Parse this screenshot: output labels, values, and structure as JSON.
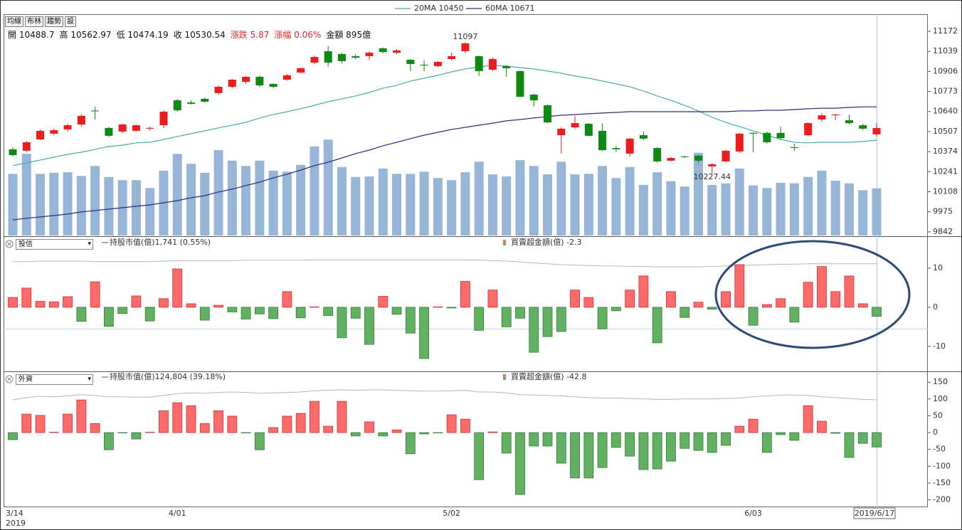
{
  "toolbar": [
    "均線",
    "布林",
    "趨勢",
    "設"
  ],
  "chart_data": [
    {
      "type": "candlestick",
      "info": [
        {
          "label": "開",
          "value": "10488.7"
        },
        {
          "label": "高",
          "value": "10562.97"
        },
        {
          "label": "低",
          "value": "10474.19"
        },
        {
          "label": "收",
          "value": "10530.54"
        },
        {
          "label": "漲跌",
          "value": "5.87",
          "color": "#e8262a"
        },
        {
          "label": "漲幅",
          "value": "0.06%",
          "color": "#e8262a"
        },
        {
          "label": "金額",
          "value": "895億"
        }
      ],
      "categories": [
        "3/14",
        null,
        null,
        null,
        null,
        null,
        null,
        null,
        null,
        null,
        null,
        null,
        "4/01",
        null,
        null,
        null,
        null,
        null,
        null,
        null,
        null,
        null,
        null,
        null,
        null,
        null,
        null,
        null,
        null,
        null,
        null,
        null,
        "5/02",
        null,
        null,
        null,
        null,
        null,
        null,
        null,
        null,
        null,
        null,
        null,
        null,
        null,
        null,
        null,
        null,
        null,
        null,
        null,
        null,
        null,
        "6/03",
        null,
        null,
        null,
        null,
        null,
        null,
        null,
        null,
        "2019/6/17"
      ],
      "x_year": "2019",
      "open": [
        10389,
        10380,
        10455,
        10493,
        10521,
        10554,
        10646,
        10531,
        10507,
        10512,
        10526,
        10549,
        10714,
        10700,
        10724,
        10762,
        10804,
        10837,
        10870,
        10823,
        10851,
        10898,
        10964,
        11040,
        11021,
        11007,
        11007,
        11059,
        11030,
        10983,
        10950,
        10941,
        10988,
        11040,
        11007,
        10917,
        10941,
        10908,
        10752,
        10681,
        10483,
        10535,
        10559,
        10512,
        10398,
        10361,
        10483,
        10398,
        10314,
        10342,
        10347,
        10276,
        10309,
        10375,
        10498,
        10498,
        10498,
        10403,
        10483,
        10587,
        10615,
        10582,
        10549,
        10488.7
      ],
      "high": [
        10403,
        10445,
        10521,
        10526,
        10559,
        10620,
        10672,
        10540,
        10559,
        10554,
        10540,
        10648,
        10724,
        10714,
        10733,
        10813,
        10856,
        10875,
        10880,
        10827,
        10889,
        10931,
        11011,
        11073,
        11030,
        11021,
        11040,
        11064,
        11054,
        10988,
        10979,
        10974,
        11030,
        11097,
        11011,
        10997,
        10946,
        10913,
        10757,
        10686,
        10535,
        10611,
        10564,
        10563,
        10412,
        10464,
        10507,
        10403,
        10337,
        10347,
        10351,
        10300,
        10384,
        10498,
        10502,
        10507,
        10540,
        10426,
        10568,
        10630,
        10625,
        10620,
        10559,
        10562.97
      ],
      "low": [
        10342,
        10370,
        10450,
        10484,
        10507,
        10540,
        10587,
        10470,
        10498,
        10507,
        10512,
        10530,
        10639,
        10686,
        10700,
        10752,
        10794,
        10823,
        10804,
        10794,
        10846,
        10893,
        10955,
        10936,
        10960,
        10988,
        10983,
        11026,
        11021,
        10908,
        10908,
        10936,
        10979,
        11026,
        10875,
        10908,
        10870,
        10733,
        10672,
        10563,
        10361,
        10526,
        10474,
        10380,
        10370,
        10342,
        10450,
        10300,
        10309,
        10332,
        10300,
        10227.44,
        10304,
        10365,
        10370,
        10427,
        10455,
        10380,
        10474,
        10573,
        10582,
        10554,
        10516,
        10474.19
      ],
      "close": [
        10351,
        10436,
        10512,
        10516,
        10549,
        10611,
        10642,
        10479,
        10554,
        10549,
        10531,
        10639,
        10648,
        10691,
        10705,
        10804,
        10851,
        10870,
        10813,
        10804,
        10880,
        10927,
        11002,
        10964,
        10974,
        10997,
        11030,
        11035,
        11045,
        10955,
        10946,
        10969,
        11007,
        11092,
        10908,
        10988,
        10927,
        10738,
        10714,
        10568,
        10526,
        10563,
        10479,
        10384,
        10390,
        10460,
        10460,
        10309,
        10332,
        10337,
        10314,
        10290,
        10380,
        10493,
        10493,
        10436,
        10464,
        10401,
        10563,
        10615,
        10620,
        10563,
        10526,
        10530.54
      ],
      "high_labels": [
        null,
        null,
        null,
        null,
        null,
        null,
        null,
        null,
        null,
        null,
        null,
        null,
        null,
        null,
        null,
        null,
        null,
        null,
        null,
        null,
        null,
        null,
        null,
        null,
        null,
        null,
        null,
        null,
        null,
        null,
        null,
        null,
        null,
        "11097",
        null,
        null,
        null,
        null,
        null,
        null,
        null,
        null,
        null,
        null,
        null,
        null,
        null,
        null,
        null,
        null,
        null,
        null,
        null,
        null,
        null,
        null,
        null,
        null,
        null,
        null,
        null,
        null,
        null,
        null
      ],
      "low_labels": [
        null,
        null,
        null,
        null,
        null,
        null,
        null,
        null,
        null,
        null,
        null,
        null,
        null,
        null,
        null,
        null,
        null,
        null,
        null,
        null,
        null,
        null,
        null,
        null,
        null,
        null,
        null,
        null,
        null,
        null,
        null,
        null,
        null,
        null,
        null,
        null,
        null,
        null,
        null,
        null,
        null,
        null,
        null,
        null,
        null,
        null,
        null,
        null,
        null,
        null,
        null,
        "10227.44",
        null,
        null,
        null,
        null,
        null,
        null,
        null,
        null,
        null,
        null,
        null,
        null
      ],
      "up_color": "#ee1c1c",
      "down_color": "#0c8a12",
      "series": [
        {
          "name": "20MA 10450",
          "color": "#49aea8",
          "values": [
            10281,
            10299,
            10318,
            10337,
            10356,
            10370,
            10389,
            10408,
            10417,
            10432,
            10436,
            10455,
            10474,
            10493,
            10512,
            10531,
            10549,
            10568,
            10597,
            10620,
            10639,
            10658,
            10681,
            10705,
            10724,
            10743,
            10766,
            10795,
            10813,
            10842,
            10861,
            10880,
            10903,
            10922,
            10936,
            10946,
            10941,
            10931,
            10922,
            10908,
            10894,
            10875,
            10861,
            10842,
            10823,
            10804,
            10776,
            10743,
            10714,
            10681,
            10644,
            10601,
            10568,
            10540,
            10512,
            10483,
            10455,
            10436,
            10432,
            10436,
            10436,
            10436,
            10441,
            10450
          ]
        },
        {
          "name": "60MA 10671",
          "color": "#2b2d7c",
          "values": [
            9922,
            9932,
            9941,
            9950,
            9960,
            9974,
            9983,
            9993,
            10002,
            10012,
            10021,
            10035,
            10049,
            10068,
            10082,
            10106,
            10125,
            10149,
            10172,
            10200,
            10224,
            10252,
            10281,
            10304,
            10332,
            10361,
            10384,
            10413,
            10436,
            10460,
            10483,
            10502,
            10521,
            10535,
            10549,
            10563,
            10578,
            10587,
            10597,
            10606,
            10615,
            10620,
            10625,
            10630,
            10634,
            10639,
            10639,
            10639,
            10639,
            10639,
            10639,
            10639,
            10639,
            10644,
            10644,
            10648,
            10648,
            10653,
            10658,
            10662,
            10662,
            10667,
            10671,
            10671
          ]
        }
      ],
      "volume": {
        "color": "#97b5d6",
        "lim": [
          0,
          4200
        ],
        "values": [
          1170,
          1550,
          1170,
          1190,
          1200,
          1130,
          1320,
          1110,
          1050,
          1050,
          900,
          1230,
          1550,
          1360,
          1190,
          1620,
          1420,
          1320,
          1420,
          1230,
          1210,
          1340,
          1690,
          1820,
          1300,
          1110,
          1120,
          1270,
          1170,
          1170,
          1210,
          1090,
          1050,
          1200,
          1400,
          1160,
          1120,
          1430,
          1320,
          1160,
          1400,
          1160,
          1170,
          1320,
          1090,
          1300,
          960,
          1200,
          1030,
          930,
          1570,
          960,
          990,
          1270,
          950,
          900,
          1000,
          990,
          1110,
          1230,
          1040,
          990,
          860,
          895
        ]
      },
      "ylim": [
        9818,
        11285
      ],
      "yticks": [
        11172,
        11039,
        10906,
        10773,
        10640,
        10507,
        10374,
        10241,
        10108,
        9975,
        9842
      ]
    },
    {
      "type": "bar",
      "selector": "投信",
      "up_color": "#ff6b6b",
      "down_color": "#62b062",
      "series": [
        {
          "name": "持股市值(億)1,741 (0.55%)",
          "color": "#b4b4b4",
          "axis": "y2",
          "values": [
            1746,
            1746,
            1747,
            1747,
            1747,
            1747,
            1746,
            1746,
            1746,
            1746,
            1746,
            1747,
            1748,
            1748,
            1748,
            1748,
            1748,
            1749,
            1749,
            1749,
            1749,
            1749,
            1750,
            1750,
            1750,
            1750,
            1750,
            1750,
            1750,
            1750,
            1750,
            1750,
            1750,
            1750,
            1749,
            1748,
            1747,
            1745,
            1743,
            1741,
            1739,
            1738,
            1737,
            1736,
            1736,
            1735,
            1735,
            1734,
            1734,
            1734,
            1734,
            1735,
            1736,
            1737,
            1738,
            1739,
            1740,
            1740,
            1741,
            1741,
            1741,
            1741,
            1741,
            1741
          ]
        },
        {
          "name": "買賣超金額(億) -2.3",
          "values": [
            2.5,
            4.9,
            1.5,
            1.4,
            2.7,
            -3.6,
            6.5,
            -4.9,
            -1.6,
            2.9,
            -3.5,
            2.2,
            9.8,
            0.9,
            -3.3,
            0.5,
            -1.2,
            -3.0,
            -1.7,
            -2.9,
            4.0,
            -2.7,
            0.1,
            -2.1,
            -7.8,
            -2.8,
            -9.5,
            2.8,
            -1.8,
            -6.6,
            -13.1,
            0.1,
            -0.2,
            6.6,
            -5.9,
            4.4,
            -5.0,
            -2.8,
            -11.5,
            -7.5,
            -6.2,
            4.4,
            2.5,
            -5.5,
            -0.9,
            4.4,
            8.0,
            -9.1,
            4.0,
            -2.6,
            1.3,
            -0.5,
            4.0,
            10.9,
            -4.6,
            0.7,
            2.2,
            -3.8,
            6.4,
            10.4,
            4.0,
            8.0,
            0.9,
            -2.3
          ]
        }
      ],
      "ylim": [
        -16.2,
        17.8
      ],
      "yticks": [
        10,
        0,
        -10
      ],
      "y2lim": [
        1500,
        1800
      ]
    },
    {
      "type": "bar",
      "selector": "外資",
      "up_color": "#ff6b6b",
      "down_color": "#62b062",
      "series": [
        {
          "name": "持股市值(億)124,804 (39.18%)",
          "color": "#b4b4b4",
          "axis": "y2",
          "values": [
            124800,
            125300,
            125600,
            125500,
            125700,
            126000,
            125800,
            125500,
            125500,
            125400,
            125400,
            125800,
            126200,
            126400,
            126300,
            126500,
            126600,
            126500,
            126300,
            126400,
            126500,
            126600,
            126900,
            127000,
            127100,
            127000,
            127100,
            127100,
            127000,
            126900,
            126800,
            126800,
            126900,
            127000,
            126600,
            126600,
            126400,
            126000,
            125900,
            125800,
            125700,
            125500,
            125300,
            125200,
            125200,
            125100,
            125000,
            124900,
            124900,
            125000,
            125000,
            125000,
            125100,
            125200,
            125500,
            125700,
            125900,
            125900,
            125800,
            125500,
            125300,
            125100,
            124900,
            124804
          ]
        },
        {
          "name": "買賣超金額(億) -42.8",
          "values": [
            -21,
            55,
            51,
            1,
            55,
            97,
            27,
            -51,
            -1,
            -19,
            1,
            65,
            89,
            80,
            27,
            65,
            49,
            -1,
            -51,
            15,
            49,
            57,
            93,
            19,
            93,
            -10,
            32,
            -10,
            8,
            -63,
            -4,
            -1,
            53,
            40,
            -140,
            2,
            -61,
            -184,
            -40,
            -40,
            -91,
            -135,
            -135,
            -104,
            -44,
            -70,
            -110,
            -108,
            -85,
            -47,
            -53,
            -59,
            -38,
            19,
            40,
            -59,
            -6,
            -23,
            80,
            34,
            -2,
            -74,
            -32,
            -42.8
          ]
        }
      ],
      "ylim": [
        -222,
        180
      ],
      "yticks": [
        150,
        100,
        50,
        0,
        -50,
        -100,
        -150,
        -200
      ],
      "y2lim": [
        100000,
        131200
      ]
    }
  ]
}
